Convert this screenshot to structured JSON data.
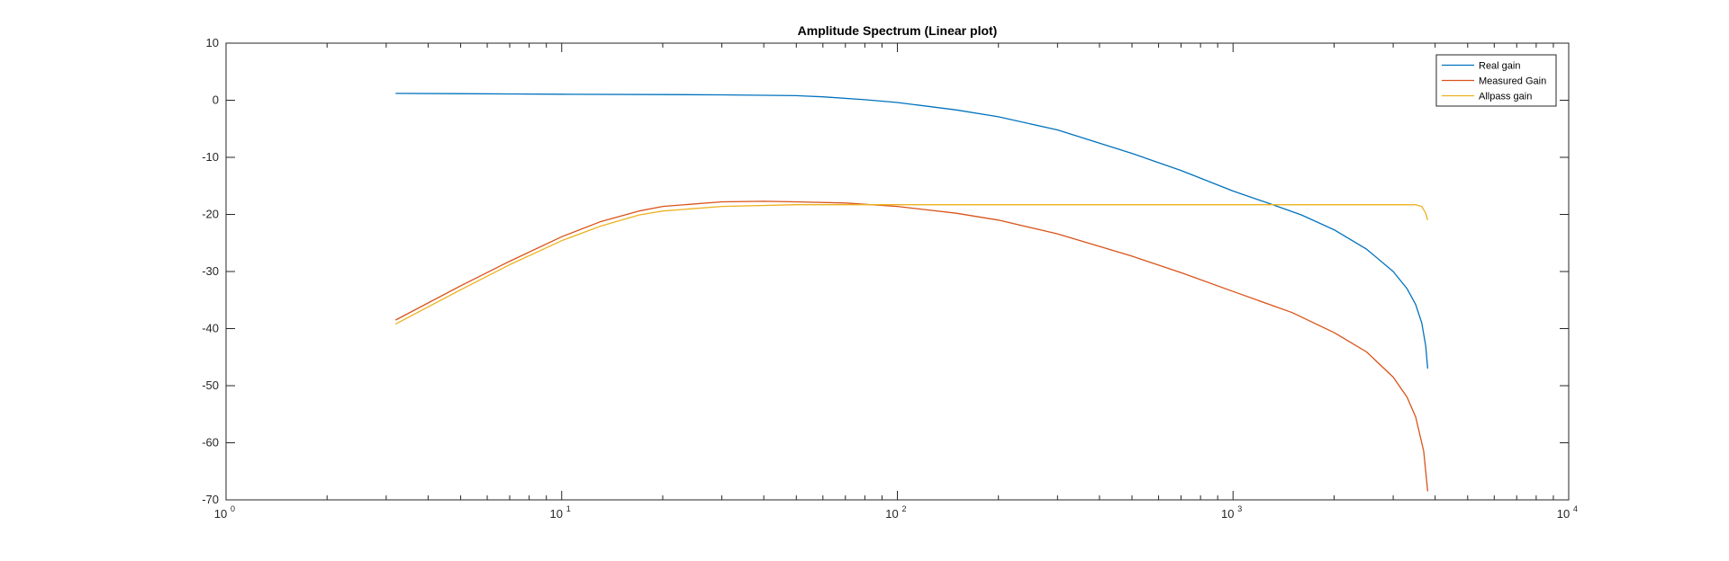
{
  "chart_data": {
    "type": "line",
    "title": "Amplitude Spectrum (Linear plot)",
    "xlabel": "",
    "ylabel": "",
    "xscale": "log",
    "xlim": [
      1,
      10000
    ],
    "ylim": [
      -70,
      10
    ],
    "yticks": [
      10,
      0,
      -10,
      -20,
      -30,
      -40,
      -50,
      -60,
      -70
    ],
    "xticks": [
      {
        "value": 1,
        "base": "10",
        "exp": "0"
      },
      {
        "value": 10,
        "base": "10",
        "exp": "1"
      },
      {
        "value": 100,
        "base": "10",
        "exp": "2"
      },
      {
        "value": 1000,
        "base": "10",
        "exp": "3"
      },
      {
        "value": 10000,
        "base": "10",
        "exp": "4"
      }
    ],
    "grid": false,
    "legend_position": "top-right",
    "series": [
      {
        "name": "Real gain",
        "color": "#0072BD",
        "x": [
          3.2,
          5,
          7,
          10,
          20,
          30,
          50,
          60,
          80,
          100,
          150,
          200,
          300,
          500,
          700,
          1000,
          1300,
          1600,
          2000,
          2500,
          3000,
          3300,
          3500,
          3650,
          3750,
          3800
        ],
        "y": [
          1.2,
          1.15,
          1.1,
          1.05,
          1.0,
          0.95,
          0.8,
          0.6,
          0.1,
          -0.4,
          -1.7,
          -2.9,
          -5.2,
          -9.3,
          -12.3,
          -15.9,
          -18.2,
          -20.1,
          -22.7,
          -26.1,
          -30.0,
          -33.0,
          -35.8,
          -39.0,
          -43.0,
          -47.0
        ]
      },
      {
        "name": "Measured Gain",
        "color": "#D95319",
        "x": [
          3.2,
          5,
          7,
          10,
          13,
          17,
          20,
          30,
          40,
          50,
          70,
          100,
          150,
          200,
          300,
          500,
          700,
          1000,
          1500,
          2000,
          2500,
          3000,
          3300,
          3500,
          3700,
          3800
        ],
        "y": [
          -38.5,
          -32.5,
          -28.2,
          -23.9,
          -21.3,
          -19.4,
          -18.6,
          -17.8,
          -17.7,
          -17.8,
          -18.0,
          -18.6,
          -19.8,
          -21.0,
          -23.4,
          -27.3,
          -30.2,
          -33.5,
          -37.2,
          -40.7,
          -44.1,
          -48.5,
          -52.0,
          -55.5,
          -61.5,
          -68.5
        ]
      },
      {
        "name": "Allpass gain",
        "color": "#EDB120",
        "x": [
          3.2,
          5,
          7,
          10,
          13,
          17,
          20,
          30,
          50,
          100,
          200,
          500,
          1000,
          2000,
          3000,
          3500,
          3650,
          3750,
          3800
        ],
        "y": [
          -39.2,
          -33.2,
          -28.8,
          -24.6,
          -22.1,
          -20.1,
          -19.4,
          -18.6,
          -18.3,
          -18.3,
          -18.3,
          -18.3,
          -18.3,
          -18.3,
          -18.3,
          -18.3,
          -18.6,
          -19.8,
          -21.0
        ]
      }
    ]
  }
}
